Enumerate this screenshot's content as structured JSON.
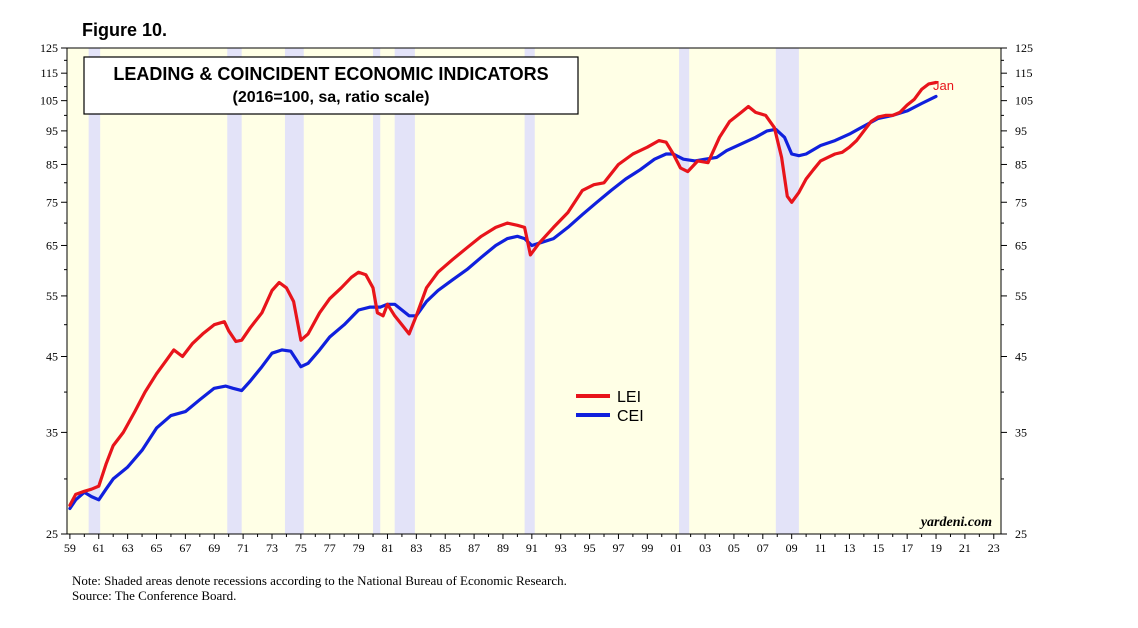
{
  "figure_label": "Figure 10.",
  "notes": {
    "line1": "Note: Shaded areas denote recessions according to the National Bureau of Economic Research.",
    "line2": "Source: The Conference Board."
  },
  "colors": {
    "plot_background": "#ffffe6",
    "recession_shading": "#e3e3f8",
    "lei": "#e8141b",
    "cei": "#1020dd"
  },
  "chart_data": {
    "type": "line",
    "title": "LEADING & COINCIDENT ECONOMIC INDICATORS",
    "subtitle": "(2016=100, sa, ratio scale)",
    "credit": "yardeni.com",
    "y_scale": "log",
    "ylim": [
      25,
      125
    ],
    "xlim": [
      1958.8,
      2023.5
    ],
    "y_ticks": [
      25,
      35,
      45,
      55,
      65,
      75,
      85,
      95,
      105,
      115,
      125
    ],
    "x_tick_labels": [
      "59",
      "61",
      "63",
      "65",
      "67",
      "69",
      "71",
      "73",
      "75",
      "77",
      "79",
      "81",
      "83",
      "85",
      "87",
      "89",
      "91",
      "93",
      "95",
      "97",
      "99",
      "01",
      "03",
      "05",
      "07",
      "09",
      "11",
      "13",
      "15",
      "17",
      "19",
      "21",
      "23"
    ],
    "legend": [
      "LEI",
      "CEI"
    ],
    "legend_position": "center",
    "end_annotation": "Jan",
    "recessions": [
      [
        1960.3,
        1961.1
      ],
      [
        1969.9,
        1970.9
      ],
      [
        1973.9,
        1975.2
      ],
      [
        1980.0,
        1980.5
      ],
      [
        1981.5,
        1982.9
      ],
      [
        1990.5,
        1991.2
      ],
      [
        2001.2,
        2001.9
      ],
      [
        2007.9,
        2009.5
      ]
    ],
    "series": [
      {
        "name": "LEI",
        "x": [
          1959.0,
          1959.4,
          1960.0,
          1960.5,
          1961.0,
          1961.5,
          1962.0,
          1962.7,
          1963.5,
          1964.2,
          1965.0,
          1965.7,
          1966.2,
          1966.8,
          1967.5,
          1968.2,
          1969.0,
          1969.7,
          1970.0,
          1970.5,
          1970.9,
          1971.5,
          1972.3,
          1973.0,
          1973.5,
          1974.0,
          1974.5,
          1975.0,
          1975.5,
          1976.3,
          1977.0,
          1977.8,
          1978.5,
          1979.0,
          1979.5,
          1980.0,
          1980.3,
          1980.7,
          1981.0,
          1981.5,
          1982.0,
          1982.5,
          1983.0,
          1983.7,
          1984.5,
          1985.5,
          1986.5,
          1987.5,
          1988.5,
          1989.3,
          1990.0,
          1990.5,
          1990.9,
          1991.5,
          1992.5,
          1993.5,
          1994.5,
          1995.3,
          1996.0,
          1997.0,
          1998.0,
          1999.0,
          1999.8,
          2000.3,
          2000.8,
          2001.3,
          2001.8,
          2002.5,
          2003.2,
          2004.0,
          2004.7,
          2005.5,
          2006.0,
          2006.5,
          2007.2,
          2007.8,
          2008.3,
          2008.7,
          2009.0,
          2009.5,
          2010.0,
          2010.5,
          2011.0,
          2011.5,
          2012.0,
          2012.5,
          2013.0,
          2013.5,
          2014.0,
          2014.5,
          2015.0,
          2015.5,
          2016.0,
          2016.5,
          2017.0,
          2017.5,
          2018.0,
          2018.5,
          2019.0
        ],
        "values": [
          27.5,
          28.5,
          28.8,
          29.0,
          29.3,
          31.5,
          33.5,
          35.0,
          37.5,
          40.0,
          42.5,
          44.5,
          46.0,
          45.0,
          47.0,
          48.5,
          50.0,
          50.5,
          49.0,
          47.3,
          47.5,
          49.5,
          52.0,
          56.0,
          57.5,
          56.5,
          54.0,
          47.5,
          48.5,
          52.0,
          54.5,
          56.5,
          58.5,
          59.5,
          59.0,
          56.5,
          52.0,
          51.5,
          53.5,
          51.5,
          50.0,
          48.5,
          51.5,
          56.5,
          59.5,
          62.0,
          64.5,
          67.0,
          69.0,
          70.0,
          69.5,
          69.0,
          63.0,
          65.5,
          69.0,
          72.5,
          78.0,
          79.5,
          80.0,
          85.0,
          88.0,
          90.0,
          92.0,
          91.5,
          88.0,
          84.0,
          83.0,
          86.0,
          85.5,
          93.0,
          98.0,
          101.0,
          103.0,
          101.0,
          100.0,
          96.0,
          87.0,
          76.5,
          75.0,
          77.5,
          81.0,
          83.5,
          86.0,
          87.0,
          88.0,
          88.5,
          90.0,
          92.0,
          95.0,
          98.0,
          99.5,
          100.0,
          100.0,
          101.0,
          103.5,
          105.5,
          109.0,
          111.0,
          111.5
        ]
      },
      {
        "name": "CEI",
        "x": [
          1959.0,
          1959.4,
          1960.0,
          1960.5,
          1961.0,
          1961.5,
          1962.0,
          1963.0,
          1964.0,
          1965.0,
          1966.0,
          1967.0,
          1968.0,
          1969.0,
          1969.8,
          1970.3,
          1970.9,
          1971.5,
          1972.3,
          1973.0,
          1973.7,
          1974.3,
          1975.0,
          1975.5,
          1976.3,
          1977.0,
          1978.0,
          1979.0,
          1979.8,
          1980.5,
          1981.0,
          1981.5,
          1982.0,
          1982.5,
          1983.0,
          1983.7,
          1984.5,
          1985.5,
          1986.5,
          1987.5,
          1988.5,
          1989.3,
          1990.0,
          1990.5,
          1991.0,
          1991.5,
          1992.5,
          1993.5,
          1994.5,
          1995.5,
          1996.5,
          1997.5,
          1998.5,
          1999.5,
          2000.3,
          2000.8,
          2001.5,
          2002.3,
          2003.0,
          2003.8,
          2004.5,
          2005.5,
          2006.5,
          2007.3,
          2007.9,
          2008.5,
          2009.0,
          2009.5,
          2010.0,
          2011.0,
          2012.0,
          2013.0,
          2014.0,
          2015.0,
          2016.0,
          2017.0,
          2018.0,
          2019.0
        ],
        "values": [
          27.2,
          28.0,
          28.7,
          28.3,
          28.0,
          29.0,
          30.0,
          31.2,
          33.0,
          35.5,
          37.0,
          37.5,
          39.0,
          40.5,
          40.8,
          40.5,
          40.2,
          41.5,
          43.5,
          45.5,
          46.0,
          45.8,
          43.5,
          44.0,
          46.0,
          48.0,
          50.0,
          52.5,
          53.0,
          53.0,
          53.5,
          53.5,
          52.5,
          51.5,
          51.5,
          54.0,
          56.0,
          58.0,
          60.0,
          62.5,
          65.0,
          66.5,
          67.0,
          66.5,
          65.0,
          65.5,
          66.5,
          69.0,
          72.0,
          75.0,
          78.0,
          81.0,
          83.5,
          86.5,
          88.0,
          88.0,
          86.5,
          86.0,
          86.5,
          87.0,
          89.0,
          91.0,
          93.0,
          95.0,
          95.5,
          93.0,
          88.0,
          87.5,
          88.0,
          90.5,
          92.0,
          94.0,
          96.5,
          99.0,
          100.0,
          101.5,
          104.0,
          106.5
        ]
      }
    ]
  }
}
